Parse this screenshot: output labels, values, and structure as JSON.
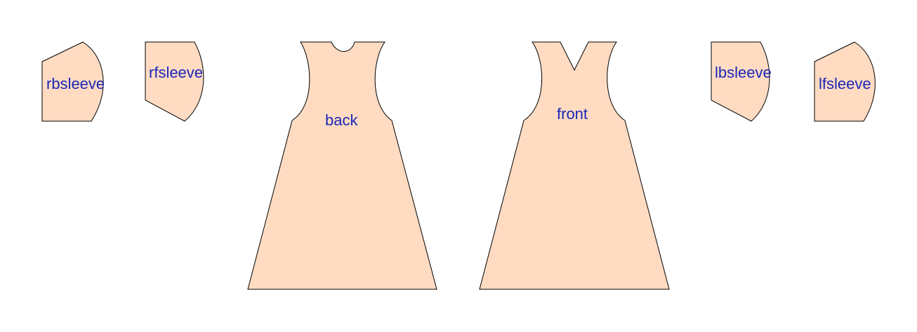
{
  "colors": {
    "piece_fill": "#FFDBC2",
    "piece_stroke": "#000000",
    "label_color": "#1B27B8",
    "background": "#FFFFFF"
  },
  "pieces": {
    "rbsleeve": {
      "label": "rbsleeve"
    },
    "rfsleeve": {
      "label": "rfsleeve"
    },
    "back": {
      "label": "back"
    },
    "front": {
      "label": "front"
    },
    "lbsleeve": {
      "label": "lbsleeve"
    },
    "lfsleeve": {
      "label": "lfsleeve"
    }
  }
}
